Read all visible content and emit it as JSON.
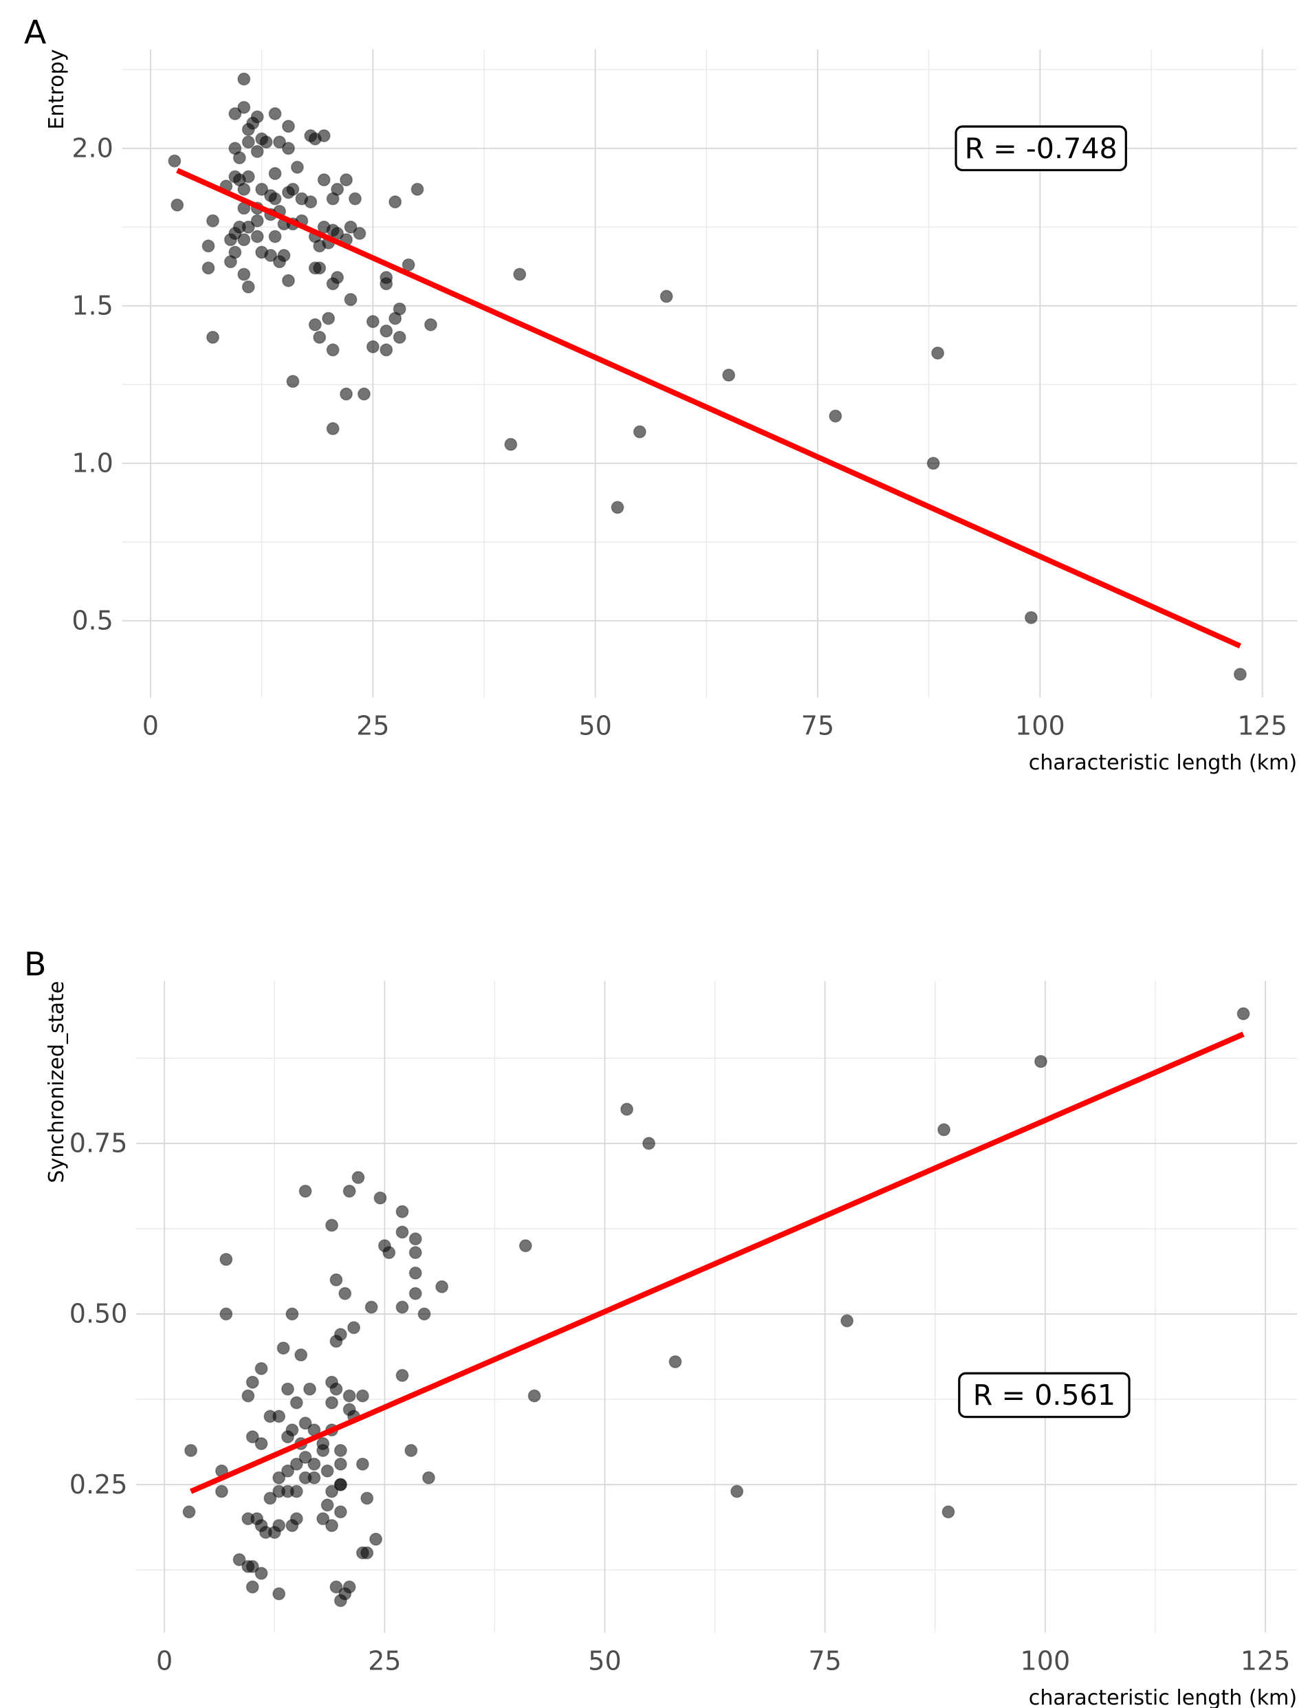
{
  "chart_data": [
    {
      "type": "scatter",
      "panel": "A",
      "y_label": "Entropy",
      "x_label": "characteristic length (km)",
      "annotation": "R = -0.748",
      "xlim": [
        -3.2,
        128.9
      ],
      "ylim": [
        0.256,
        2.315
      ],
      "xticks": [
        0,
        25,
        50,
        75,
        100,
        125
      ],
      "yticks": [
        0.5,
        {
          "value": 1,
          "label": "1.0"
        },
        1.5,
        {
          "value": 2,
          "label": "2.0"
        }
      ],
      "grid": true,
      "point_color": "#000000",
      "fit_color": "#ff0000",
      "fit": {
        "x": [
          3,
          122.5
        ],
        "y": [
          1.93,
          0.42
        ]
      },
      "x": [
        2.7,
        3,
        7,
        6.5,
        6.5,
        7,
        41.5,
        58,
        65,
        77,
        88.5,
        88,
        99,
        122.5,
        40.5,
        52.5,
        55,
        30,
        27.5,
        29,
        31.5,
        28,
        28,
        27.5,
        26.5,
        26.5,
        25,
        25,
        24,
        22,
        20.5,
        16,
        20.5,
        20,
        19,
        18.5,
        20.5,
        21,
        26.5,
        26.5,
        22.5,
        23.5,
        22,
        22,
        23,
        21,
        20.5,
        20,
        19,
        19.5,
        18.5,
        18,
        19.5,
        18,
        17,
        17,
        16,
        16.5,
        15.5,
        15,
        14.5,
        14,
        15,
        14.5,
        13.5,
        12.5,
        15.5,
        14,
        14.5,
        15.5,
        15.5,
        14,
        13,
        12.5,
        12,
        11.5,
        11,
        10.5,
        9.5,
        10.5,
        12,
        11,
        9.5,
        10,
        8.5,
        9.5,
        10,
        11,
        10.5,
        10.5,
        12.5,
        12,
        12,
        12,
        11,
        10.5,
        9.5,
        9.5,
        9,
        9,
        10,
        10.5,
        11,
        13.5,
        13.5,
        14,
        16,
        18.5,
        19,
        19.5,
        21,
        22.5,
        18.5,
        20.5
      ],
      "values": [
        1.96,
        1.82,
        1.77,
        1.69,
        1.62,
        1.4,
        1.6,
        1.53,
        1.28,
        1.15,
        1.35,
        1,
        0.51,
        0.33,
        1.06,
        0.86,
        1.1,
        1.87,
        1.83,
        1.63,
        1.44,
        1.49,
        1.4,
        1.46,
        1.42,
        1.36,
        1.37,
        1.45,
        1.22,
        1.22,
        1.11,
        1.26,
        1.36,
        1.46,
        1.4,
        1.44,
        1.57,
        1.59,
        1.57,
        1.59,
        1.52,
        1.73,
        1.71,
        1.9,
        1.84,
        1.87,
        1.74,
        1.7,
        1.62,
        2.04,
        2.03,
        2.04,
        1.9,
        1.83,
        1.84,
        1.77,
        1.87,
        1.94,
        1.86,
        1.76,
        1.8,
        1.72,
        1.66,
        1.64,
        1.66,
        1.67,
        1.58,
        1.92,
        2.02,
        2,
        2.07,
        2.11,
        2.02,
        2.03,
        2.1,
        2.08,
        2.06,
        2.13,
        2.11,
        2.22,
        1.99,
        2.02,
        2,
        1.97,
        1.88,
        1.91,
        1.9,
        1.91,
        1.87,
        1.81,
        1.87,
        1.81,
        1.77,
        1.72,
        1.75,
        1.71,
        1.73,
        1.67,
        1.64,
        1.71,
        1.75,
        1.6,
        1.56,
        1.85,
        1.79,
        1.84,
        1.76,
        1.72,
        1.69,
        1.75,
        1.73,
        1.75,
        1.62,
        1.84
      ]
    },
    {
      "type": "scatter",
      "panel": "B",
      "y_label": "Synchronized_state",
      "x_label": "characteristic length (km)",
      "annotation": "R = 0.561",
      "xlim": [
        -3.2,
        128.6
      ],
      "ylim": [
        0.033,
        0.988
      ],
      "xticks": [
        0,
        25,
        50,
        75,
        100,
        125
      ],
      "yticks": [
        0.25,
        {
          "value": 0.5,
          "label": "0.50"
        },
        0.75
      ],
      "grid": true,
      "point_color": "#000000",
      "fit_color": "#ff0000",
      "fit": {
        "x": [
          3,
          122.5
        ],
        "y": [
          0.24,
          0.91
        ]
      },
      "x": [
        3,
        2.8,
        7,
        7,
        6.5,
        6.5,
        8.5,
        9.5,
        10,
        10,
        11,
        13,
        9.5,
        10.5,
        11,
        11.5,
        12.5,
        13,
        14.5,
        15,
        12,
        13,
        14,
        15,
        13,
        14,
        15,
        16,
        17,
        16,
        17,
        18,
        18.5,
        19,
        18.5,
        19,
        18,
        20,
        19,
        18,
        17,
        16,
        15.5,
        14.5,
        14,
        13,
        12,
        11,
        10,
        9.5,
        10,
        11,
        13.5,
        14,
        15,
        15.5,
        14.5,
        16.5,
        16,
        19,
        19.5,
        20,
        19.5,
        20.5,
        21.5,
        19,
        19,
        19.5,
        21,
        22.5,
        21,
        21.5,
        20,
        20,
        20,
        22.5,
        23,
        22.5,
        23,
        24,
        19.5,
        20,
        20.5,
        21,
        20,
        23.5,
        24.5,
        22,
        21,
        25,
        25.5,
        27,
        27,
        28.5,
        28.5,
        28.5,
        28.5,
        27,
        29.5,
        31.5,
        27,
        28,
        30,
        41,
        42,
        52.5,
        55,
        58,
        65,
        77.5,
        88.5,
        89,
        99.5,
        122.5
      ],
      "values": [
        0.3,
        0.21,
        0.58,
        0.5,
        0.27,
        0.24,
        0.14,
        0.13,
        0.1,
        0.13,
        0.12,
        0.09,
        0.2,
        0.2,
        0.19,
        0.18,
        0.18,
        0.19,
        0.19,
        0.2,
        0.23,
        0.24,
        0.24,
        0.24,
        0.26,
        0.27,
        0.28,
        0.26,
        0.26,
        0.29,
        0.28,
        0.3,
        0.27,
        0.24,
        0.22,
        0.19,
        0.2,
        0.21,
        0.33,
        0.31,
        0.33,
        0.34,
        0.31,
        0.33,
        0.32,
        0.35,
        0.35,
        0.31,
        0.32,
        0.38,
        0.4,
        0.42,
        0.45,
        0.39,
        0.37,
        0.44,
        0.5,
        0.39,
        0.68,
        0.63,
        0.55,
        0.47,
        0.46,
        0.53,
        0.48,
        0.4,
        0.37,
        0.39,
        0.38,
        0.38,
        0.36,
        0.35,
        0.3,
        0.28,
        0.25,
        0.28,
        0.23,
        0.15,
        0.15,
        0.17,
        0.1,
        0.08,
        0.09,
        0.1,
        0.25,
        0.51,
        0.67,
        0.7,
        0.68,
        0.6,
        0.59,
        0.65,
        0.62,
        0.61,
        0.59,
        0.56,
        0.53,
        0.51,
        0.5,
        0.54,
        0.41,
        0.3,
        0.26,
        0.6,
        0.38,
        0.8,
        0.75,
        0.43,
        0.24,
        0.49,
        0.77,
        0.21,
        0.87,
        0.94
      ]
    }
  ]
}
